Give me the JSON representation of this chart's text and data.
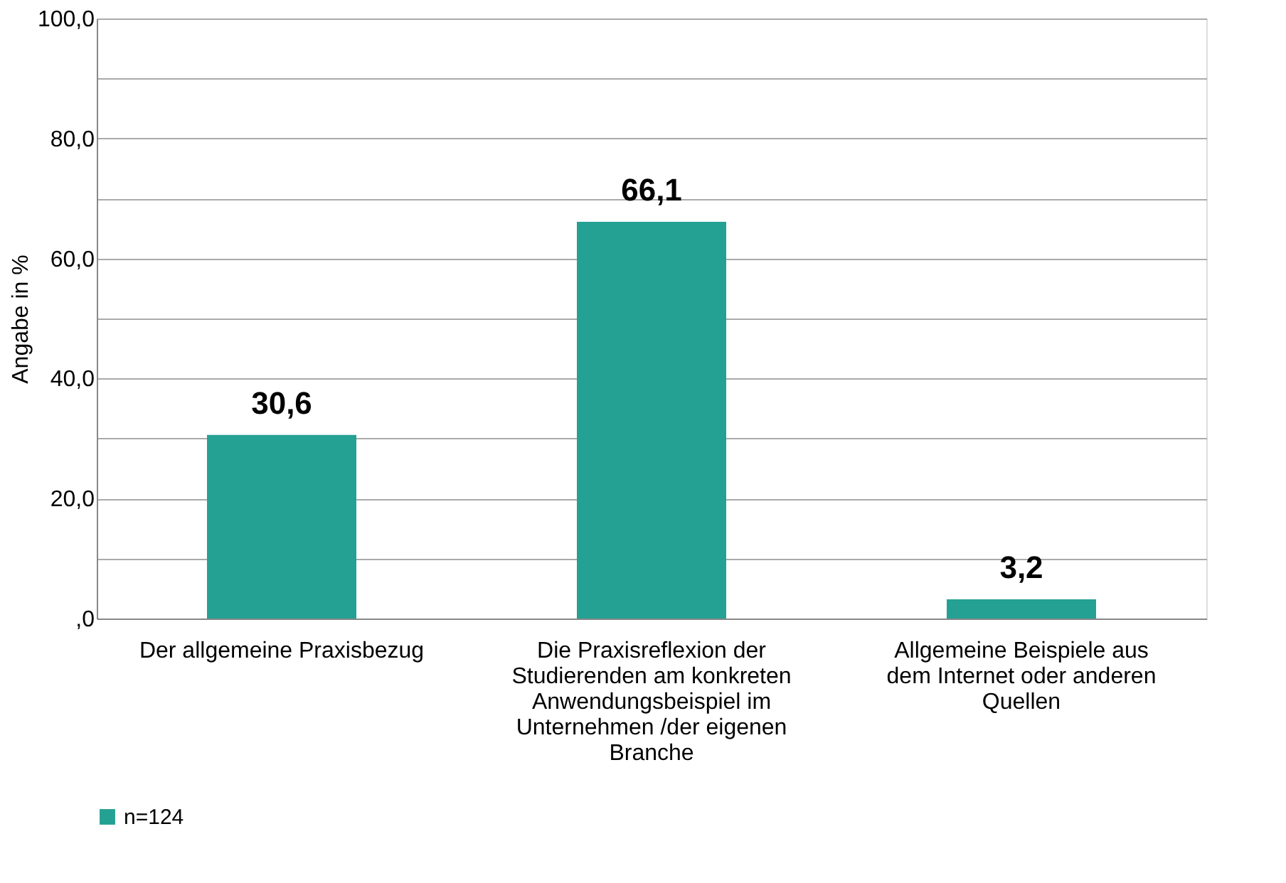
{
  "chart_data": {
    "type": "bar",
    "ylabel": "Angabe in %",
    "categories": [
      "Der allgemeine Praxisbezug",
      "Die Praxisreflexion der Studierenden am konkreten Anwendungsbeispiel im Unternehmen /der eigenen Branche",
      "Allgemeine Beispiele aus dem Internet oder anderen Quellen"
    ],
    "series": [
      {
        "name": "n=124",
        "color": "#24a193",
        "values": [
          30.6,
          66.1,
          3.2
        ],
        "value_labels": [
          "30,6",
          "66,1",
          "3,2"
        ]
      }
    ],
    "ylim": [
      0,
      100
    ],
    "yticks": [
      {
        "value": 0,
        "label": ",0"
      },
      {
        "value": 10,
        "label": null
      },
      {
        "value": 20,
        "label": "20,0"
      },
      {
        "value": 30,
        "label": null
      },
      {
        "value": 40,
        "label": "40,0"
      },
      {
        "value": 50,
        "label": null
      },
      {
        "value": 60,
        "label": "60,0"
      },
      {
        "value": 70,
        "label": null
      },
      {
        "value": 80,
        "label": "80,0"
      },
      {
        "value": 90,
        "label": null
      },
      {
        "value": 100,
        "label": "100,0"
      }
    ],
    "grid": true,
    "legend": "bottom"
  }
}
